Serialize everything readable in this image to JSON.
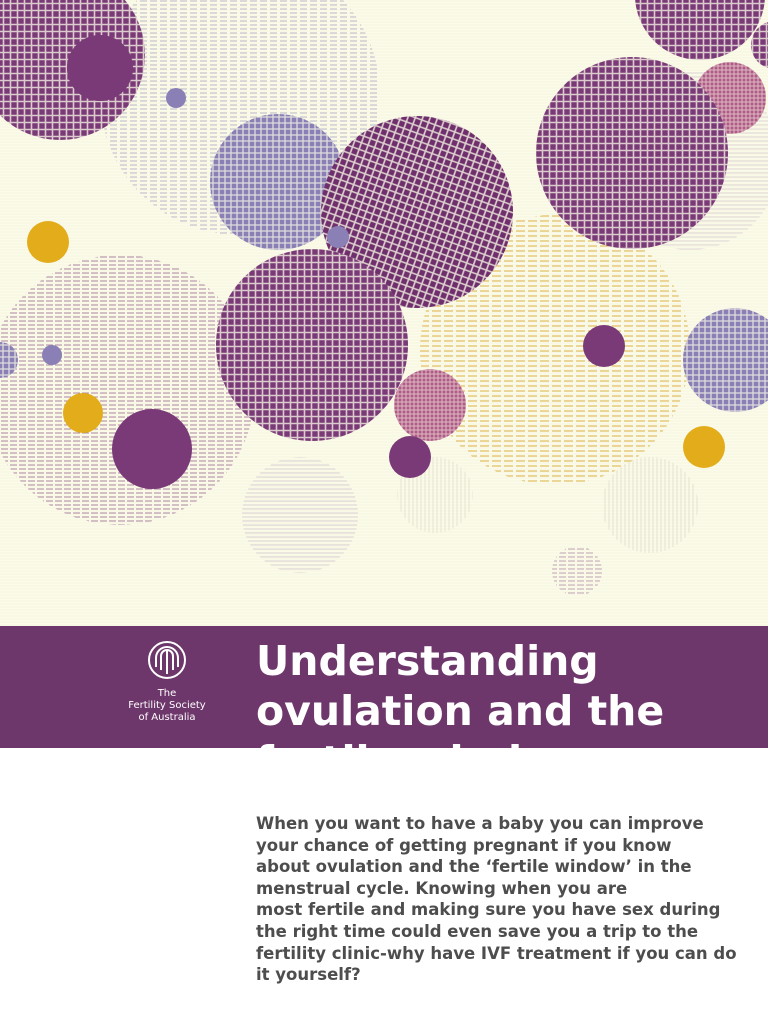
{
  "cover": {
    "art_colors": {
      "background": "#fbfbe9",
      "purple": "#7a3a77",
      "lavender": "#8a80b5",
      "gold": "#e2ac1a",
      "pink": "#b05a86"
    }
  },
  "banner": {
    "background": "#6e376b",
    "logo": {
      "icon": "fertility-society-emblem-icon",
      "lines": [
        "The",
        "Fertility Society",
        "of Australia"
      ]
    },
    "title_lines": [
      "Understanding",
      "ovulation and the",
      "fertile window"
    ]
  },
  "intro": {
    "lines": [
      "When you want to have a baby you can improve",
      "your chance of getting pregnant if you know",
      "about ovulation and the ‘fertile window’ in the",
      "menstrual cycle. Knowing when you are",
      "most fertile and making sure you have sex during",
      "the right time could even save you a trip to the",
      "fertility clinic-why have IVF treatment if you can do",
      "it yourself?"
    ]
  }
}
